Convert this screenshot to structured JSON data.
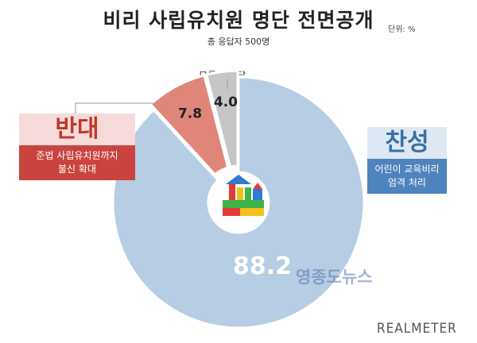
{
  "title": "비리 사립유치원 명단 전면공개",
  "subtitle": "총 응답자 500명",
  "unit": "단위: %",
  "brand": "REALMETER",
  "watermark": "영종도뉴스",
  "oppose_panel": {
    "heading": "반대",
    "line1": "준법 사립유치원까지",
    "line2": "불신 확대"
  },
  "support_panel": {
    "heading": "찬성",
    "line1": "어린이 교육비리",
    "line2": "엄격 처리"
  },
  "colors": {
    "support": "#b7cde4",
    "oppose": "#e0857a",
    "dont_know": "#c6c6c6"
  },
  "chart_data": {
    "type": "pie",
    "style": "donut",
    "categories": [
      "찬성",
      "반대",
      "모름/무응답"
    ],
    "values": [
      88.2,
      7.8,
      4.0
    ],
    "value_labels": [
      "88.2",
      "7.8",
      "4.0"
    ],
    "dont_know_label": "모름/무응답"
  }
}
